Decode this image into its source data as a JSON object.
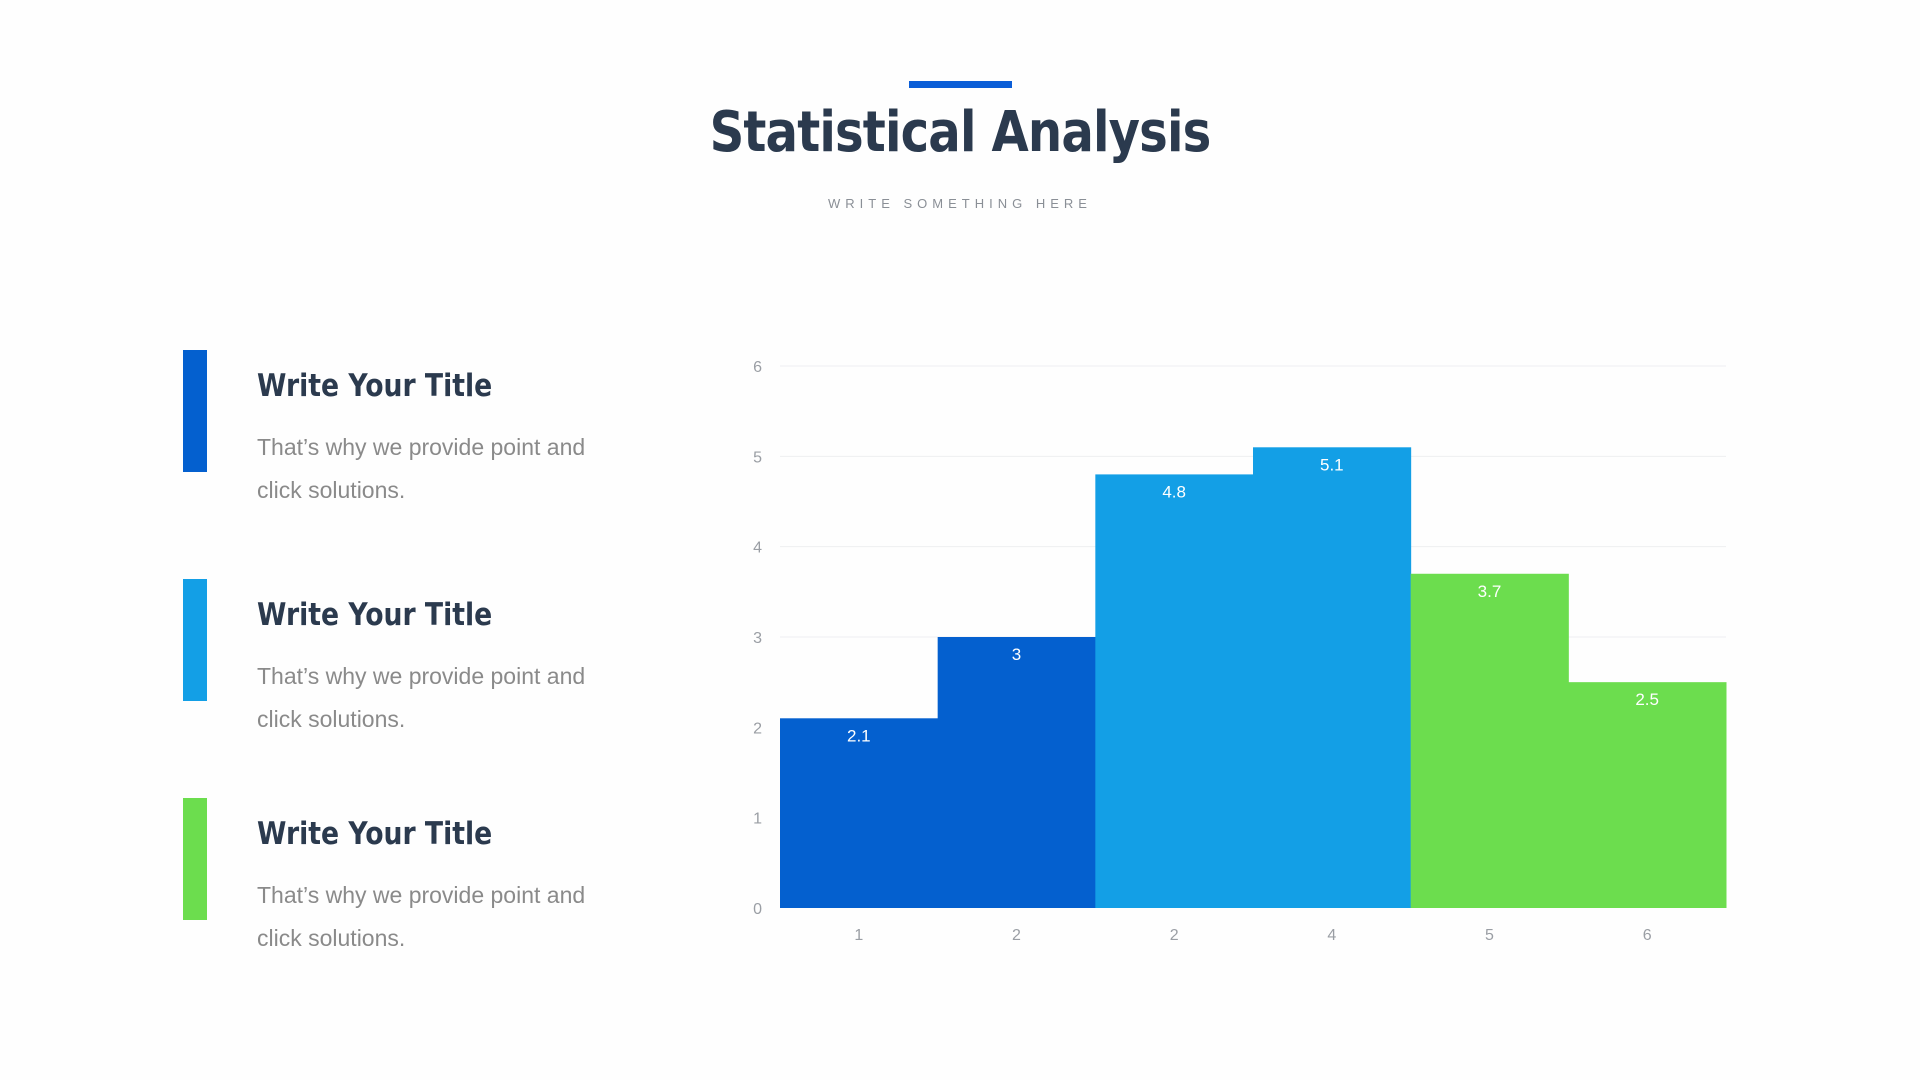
{
  "header": {
    "title": "Statistical Analysis",
    "subtitle": "WRITE SOMETHING HERE",
    "accent_color": "#0b5ed7"
  },
  "items": [
    {
      "title": "Write Your Title",
      "text": "That’s why we provide point and click solutions.",
      "color": "#0460cf"
    },
    {
      "title": "Write Your Title",
      "text": "That’s why we provide point and click solutions.",
      "color": "#139fe6"
    },
    {
      "title": "Write Your Title",
      "text": "That’s why we provide point and click solutions.",
      "color": "#6cdd4e"
    }
  ],
  "chart_data": {
    "type": "bar",
    "categories": [
      "1",
      "2",
      "2",
      "4",
      "5",
      "6"
    ],
    "values": [
      2.1,
      3,
      4.8,
      5.1,
      3.7,
      2.5
    ],
    "bar_colors": [
      "#0460cf",
      "#0460cf",
      "#139fe6",
      "#139fe6",
      "#6cdd4e",
      "#6cdd4e"
    ],
    "ylim": [
      0,
      6
    ],
    "yticks": [
      0,
      1,
      2,
      3,
      4,
      5,
      6
    ],
    "grid": true,
    "data_labels": true,
    "title": "",
    "xlabel": "",
    "ylabel": ""
  }
}
